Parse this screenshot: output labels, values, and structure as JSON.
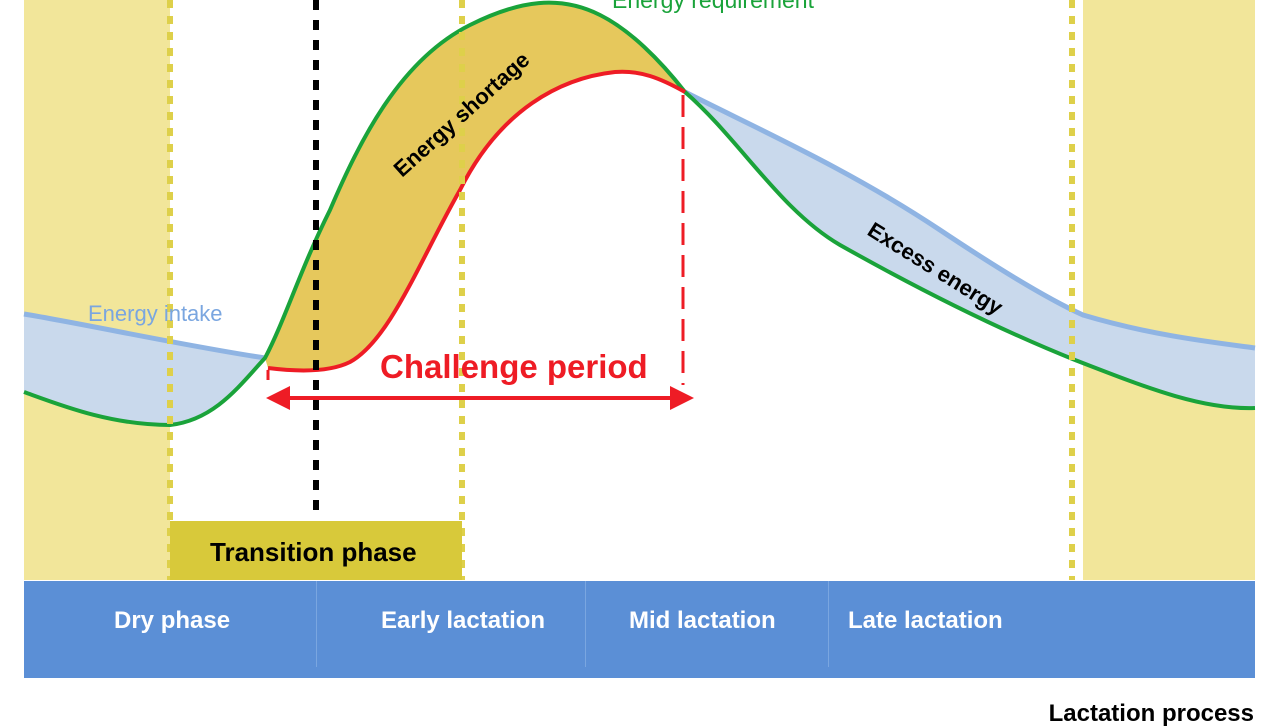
{
  "labels": {
    "energy_requirement": "Energy requirement",
    "energy_intake": "Energy intake",
    "energy_shortage": "Energy shortage",
    "excess_energy": "Excess energy",
    "challenge_period": "Challenge period",
    "transition_phase": "Transition phase",
    "lactation_process": "Lactation process"
  },
  "phases": [
    {
      "label": "Dry phase"
    },
    {
      "label": "Early lactation"
    },
    {
      "label": "Mid lactation"
    },
    {
      "label": "Late lactation"
    }
  ],
  "colors": {
    "requirement_curve": "#1aa33a",
    "intake_curve": "#8fb4e3",
    "challenge_curve": "#ee1c25",
    "shortage_fill": "#e6c85c",
    "excess_fill": "#c9d9ec",
    "edge_phase_fill": "#f2e69a",
    "phase_bar": "#5b8fd6",
    "transition_box": "#d8c93a"
  }
}
